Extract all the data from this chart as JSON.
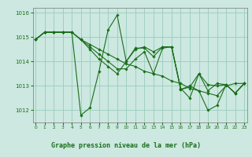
{
  "title": "Graphe pression niveau de la mer (hPa)",
  "bg_color": "#cce8e0",
  "grid_color": "#99ccbb",
  "line_color": "#1a6e1a",
  "title_color": "#1a6e1a",
  "ylim": [
    1011.5,
    1016.2
  ],
  "xlim": [
    -0.3,
    23.3
  ],
  "yticks": [
    1012,
    1013,
    1014,
    1015,
    1016
  ],
  "xticks": [
    0,
    1,
    2,
    3,
    4,
    5,
    6,
    7,
    8,
    9,
    10,
    11,
    12,
    13,
    14,
    15,
    16,
    17,
    18,
    19,
    20,
    21,
    22,
    23
  ],
  "series": [
    [
      1014.9,
      1015.2,
      1015.2,
      1015.2,
      1015.2,
      1014.9,
      1014.7,
      1014.5,
      1014.3,
      1014.1,
      1013.9,
      1013.8,
      1013.6,
      1013.5,
      1013.4,
      1013.2,
      1013.1,
      1012.9,
      1012.8,
      1012.7,
      1012.6,
      1013.0,
      1013.1,
      1013.1
    ],
    [
      1014.9,
      1015.2,
      1015.2,
      1015.2,
      1015.2,
      1011.8,
      1012.1,
      1013.6,
      1015.3,
      1015.9,
      1014.0,
      1014.5,
      1014.6,
      1014.4,
      1014.6,
      1014.6,
      1012.85,
      1013.0,
      1012.8,
      1012.0,
      1012.2,
      1013.05,
      1012.7,
      1013.1
    ],
    [
      1014.9,
      1015.2,
      1015.2,
      1015.2,
      1015.2,
      1014.9,
      1014.5,
      1014.1,
      1013.8,
      1013.5,
      1014.0,
      1014.55,
      1014.55,
      1014.2,
      1014.6,
      1014.6,
      1012.85,
      1012.95,
      1013.5,
      1013.05,
      1013.0,
      1013.05,
      1012.7,
      1013.1
    ],
    [
      1014.9,
      1015.2,
      1015.2,
      1015.2,
      1015.2,
      1014.9,
      1014.6,
      1014.3,
      1014.0,
      1013.7,
      1013.7,
      1014.1,
      1014.4,
      1013.5,
      1014.55,
      1014.6,
      1012.9,
      1012.5,
      1013.5,
      1012.8,
      1013.1,
      1013.05,
      1012.7,
      1013.1
    ]
  ]
}
